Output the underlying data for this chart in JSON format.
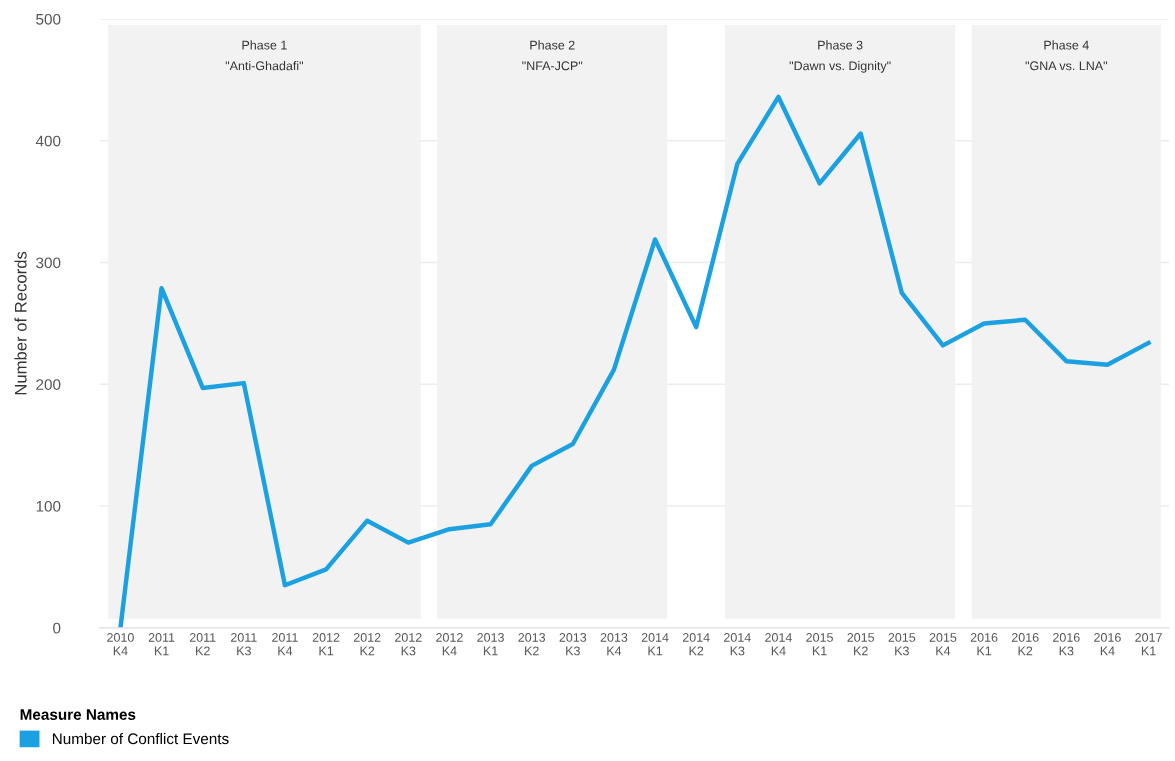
{
  "chart_data": {
    "type": "line",
    "ylabel": "Number of Records",
    "legend_title": "Measure Names",
    "legend": "bottom left",
    "categories": [
      "2010\nK4",
      "2011\nK1",
      "2011\nK2",
      "2011\nK3",
      "2011\nK4",
      "2012\nK1",
      "2012\nK2",
      "2012\nK3",
      "2012\nK4",
      "2013\nK1",
      "2013\nK2",
      "2013\nK3",
      "2013\nK4",
      "2014\nK1",
      "2014\nK2",
      "2014\nK3",
      "2014\nK4",
      "2015\nK1",
      "2015\nK2",
      "2015\nK3",
      "2015\nK4",
      "2016\nK1",
      "2016\nK2",
      "2016\nK3",
      "2016\nK4",
      "2017\nK1"
    ],
    "series": [
      {
        "name": "Number of Conflict Events",
        "color": "#1ba1e2",
        "values": [
          0,
          279,
          197,
          201,
          35,
          48,
          88,
          70,
          81,
          85,
          133,
          151,
          212,
          319,
          247,
          381,
          436,
          365,
          406,
          275,
          232,
          250,
          253,
          219,
          216,
          234
        ]
      }
    ],
    "ylim": [
      0,
      500
    ],
    "yticks": [
      0,
      100,
      200,
      300,
      400,
      500
    ],
    "grid": "y",
    "bands": [
      {
        "axis": "x",
        "from": "2010\nK4",
        "to": "2012\nK3",
        "label": "Phase 1\n\"Anti-Ghadafi\"",
        "color": "#f2f2f2"
      },
      {
        "axis": "x",
        "from": "2012\nK4",
        "to": "2014\nK1",
        "label": "Phase 2\n\"NFA-JCP\"",
        "color": "#f2f2f2"
      },
      {
        "axis": "x",
        "from": "2014\nK3",
        "to": "2015\nK4",
        "label": "Phase 3\n\"Dawn vs. Dignity\"",
        "color": "#f2f2f2"
      },
      {
        "axis": "x",
        "from": "2016\nK1",
        "to": "2017\nK1",
        "label": "Phase 4\n\"GNA vs. LNA\"",
        "color": "#f2f2f2"
      }
    ]
  }
}
